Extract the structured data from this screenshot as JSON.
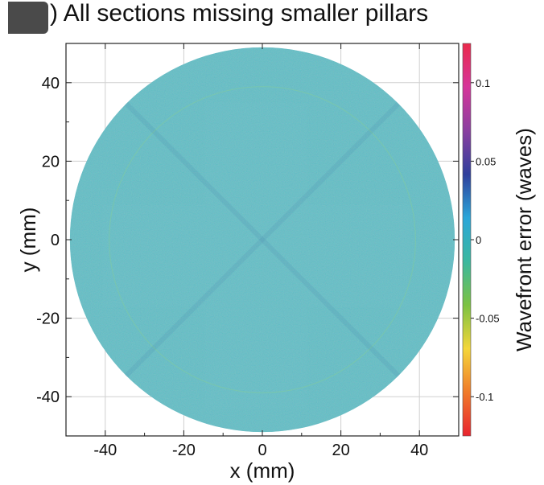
{
  "panel": {
    "label_prefix": ")",
    "title": "All sections missing smaller pillars"
  },
  "chart_data": {
    "type": "heatmap",
    "title": "All sections missing smaller pillars",
    "xlabel": "x (mm)",
    "ylabel": "y (mm)",
    "colorbar_label": "Wavefront error (waves)",
    "xlim": [
      -50,
      50
    ],
    "ylim": [
      -50,
      50
    ],
    "x_ticks": [
      -40,
      -20,
      0,
      20,
      40
    ],
    "y_ticks": [
      40,
      20,
      0,
      -20,
      -40
    ],
    "x_tick_labels": [
      "-40",
      "-20",
      "0",
      "20",
      "40"
    ],
    "y_tick_labels": [
      "40",
      "20",
      "0",
      "-20",
      "-40"
    ],
    "colorbar_range": [
      -0.125,
      0.125
    ],
    "colorbar_ticks": [
      0.1,
      0.05,
      0,
      -0.05,
      -0.1
    ],
    "colorbar_tick_labels": [
      "0.1",
      "0.05",
      "0",
      "-0.05",
      "-0.1"
    ],
    "aperture_radius_mm": 49,
    "faint_ring_radius_mm": 39,
    "dominant_value": 0.01,
    "grid": true,
    "colormap": [
      "#e8242f",
      "#f07a2a",
      "#f4d63a",
      "#7cc242",
      "#3bb89f",
      "#2ba6d9",
      "#2f3f9c",
      "#8a3fa0",
      "#d6359a",
      "#ea2a4c"
    ]
  }
}
